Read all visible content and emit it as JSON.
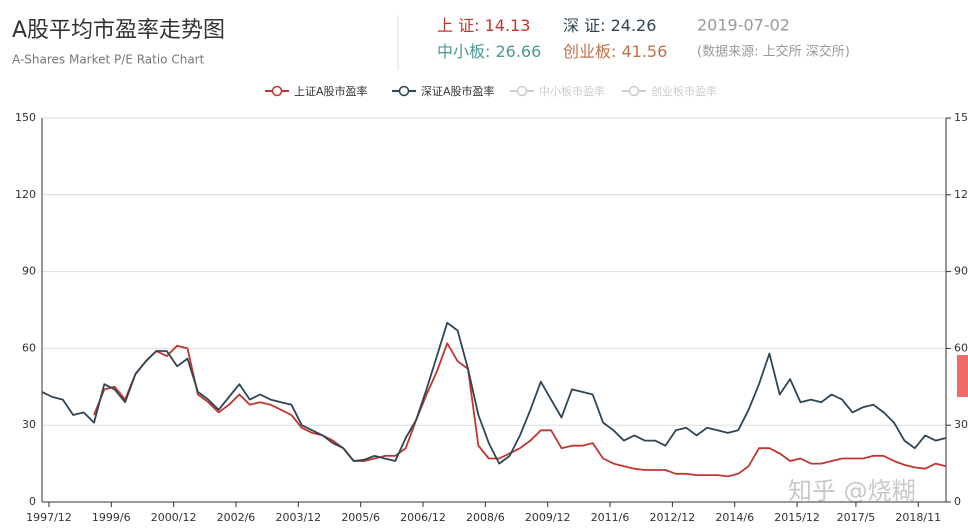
{
  "chart_data": {
    "type": "line",
    "title": "A股平均市盈率走势图",
    "subtitle": "A-Shares Market P/E Ratio Chart",
    "stats": [
      {
        "label": "上 证: ",
        "value": 14.13,
        "color": "#c23531"
      },
      {
        "label": "深 证: ",
        "value": 24.26,
        "color": "#2f4554"
      },
      {
        "label": "中小板: ",
        "value": 26.66,
        "color": "#4a9a96"
      },
      {
        "label": "创业板: ",
        "value": 41.56,
        "color": "#c0704a"
      }
    ],
    "date": "2019-07-02",
    "source": "(数据来源: 上交所 深交所)",
    "watermark": "知乎 @烧糊",
    "x": [
      1997.75,
      1998,
      1998.25,
      1998.5,
      1998.75,
      1999,
      1999.25,
      1999.5,
      1999.75,
      2000,
      2000.25,
      2000.5,
      2000.75,
      2001,
      2001.25,
      2001.5,
      2001.75,
      2002,
      2002.25,
      2002.5,
      2002.75,
      2003,
      2003.25,
      2003.5,
      2003.75,
      2004,
      2004.25,
      2004.5,
      2004.75,
      2005,
      2005.25,
      2005.5,
      2005.75,
      2006,
      2006.25,
      2006.5,
      2006.75,
      2007,
      2007.25,
      2007.5,
      2007.75,
      2008,
      2008.25,
      2008.5,
      2008.75,
      2009,
      2009.25,
      2009.5,
      2009.75,
      2010,
      2010.25,
      2010.5,
      2010.75,
      2011,
      2011.25,
      2011.5,
      2011.75,
      2012,
      2012.25,
      2012.5,
      2012.75,
      2013,
      2013.25,
      2013.5,
      2013.75,
      2014,
      2014.25,
      2014.5,
      2014.75,
      2015,
      2015.25,
      2015.5,
      2015.75,
      2016,
      2016.25,
      2016.5,
      2016.75,
      2017,
      2017.25,
      2017.5,
      2017.75,
      2018,
      2018.25,
      2018.5,
      2018.75,
      2019,
      2019.25,
      2019.5
    ],
    "xlim": [
      1997.75,
      2019.5
    ],
    "xticks": [
      {
        "value": 1997.917,
        "label": "1997/12"
      },
      {
        "value": 1999.417,
        "label": "1999/6"
      },
      {
        "value": 2000.917,
        "label": "2000/12"
      },
      {
        "value": 2002.417,
        "label": "2002/6"
      },
      {
        "value": 2003.917,
        "label": "2003/12"
      },
      {
        "value": 2005.417,
        "label": "2005/6"
      },
      {
        "value": 2006.917,
        "label": "2006/12"
      },
      {
        "value": 2008.417,
        "label": "2008/6"
      },
      {
        "value": 2009.917,
        "label": "2009/12"
      },
      {
        "value": 2011.417,
        "label": "2011/6"
      },
      {
        "value": 2012.917,
        "label": "2012/12"
      },
      {
        "value": 2014.417,
        "label": "2014/6"
      },
      {
        "value": 2015.917,
        "label": "2015/12"
      },
      {
        "value": 2017.333,
        "label": "2017/5"
      },
      {
        "value": 2018.833,
        "label": "2018/11"
      }
    ],
    "ylim": [
      0,
      150
    ],
    "yticks": [
      0,
      30,
      60,
      90,
      120,
      150
    ],
    "y2lim": [
      0,
      150
    ],
    "y2ticks": [
      0,
      30,
      60,
      90,
      120,
      150
    ],
    "grid": true,
    "series": [
      {
        "name": "上证A股市盈率",
        "color": "#c23531",
        "values": [
          null,
          null,
          null,
          null,
          null,
          34,
          44,
          45,
          40,
          50,
          55,
          59,
          57,
          61,
          60,
          42,
          39,
          35,
          38,
          42,
          38,
          39,
          38,
          36,
          34,
          29,
          27,
          26,
          24,
          21,
          16,
          16,
          17,
          18,
          18,
          21,
          32,
          42,
          51,
          62,
          55,
          52,
          22,
          17,
          17,
          19,
          21,
          24,
          28,
          28,
          21,
          22,
          22,
          23,
          17,
          15,
          14,
          13,
          12.5,
          12.5,
          12.5,
          11,
          11,
          10.5,
          10.5,
          10.5,
          10,
          11,
          14,
          21,
          21,
          19,
          16,
          17,
          15,
          15,
          16,
          17,
          17,
          17,
          18,
          18,
          16,
          14.5,
          13.5,
          13,
          15,
          14
        ]
      },
      {
        "name": "深证A股市盈率",
        "color": "#2f4554",
        "values": [
          43,
          41,
          40,
          34,
          35,
          31,
          46,
          44,
          39,
          50,
          55,
          59,
          59,
          53,
          56,
          43,
          40,
          36,
          41,
          46,
          40,
          42,
          40,
          39,
          38,
          30,
          28,
          26,
          23,
          21,
          16,
          16.5,
          18,
          17,
          16,
          25,
          32,
          44,
          57,
          70,
          67,
          52,
          34,
          23,
          15,
          18,
          26,
          36,
          47,
          40,
          33,
          44,
          43,
          42,
          31,
          28,
          24,
          26,
          24,
          24,
          22,
          28,
          29,
          26,
          29,
          28,
          27,
          28,
          36,
          46,
          58,
          42,
          48,
          39,
          40,
          39,
          42,
          40,
          35,
          37,
          38,
          35,
          31,
          24,
          21,
          26,
          24,
          25
        ]
      },
      {
        "name": "中小板市盈率",
        "color": "#cccccc",
        "visible": false
      },
      {
        "name": "创业板市盈率",
        "color": "#cccccc",
        "visible": false
      }
    ]
  }
}
